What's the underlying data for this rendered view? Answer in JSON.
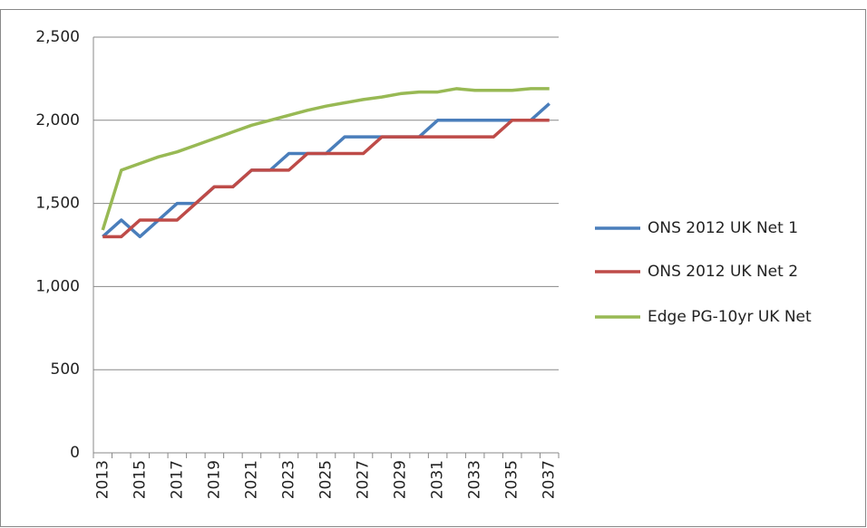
{
  "chart_data": {
    "type": "line",
    "categories": [
      "2013",
      null,
      "2015",
      null,
      "2017",
      null,
      "2019",
      null,
      "2021",
      null,
      "2023",
      null,
      "2025",
      null,
      "2027",
      null,
      "2029",
      null,
      "2031",
      null,
      "2033",
      null,
      "2035",
      null,
      "2037"
    ],
    "series": [
      {
        "name": "ONS 2012 UK Net 1",
        "color": "#4a7ebb",
        "values": [
          1300,
          1400,
          1300,
          1400,
          1500,
          1500,
          1600,
          1600,
          1700,
          1700,
          1800,
          1800,
          1800,
          1900,
          1900,
          1900,
          1900,
          1900,
          2000,
          2000,
          2000,
          2000,
          2000,
          2000,
          2100
        ]
      },
      {
        "name": "ONS 2012 UK Net 2",
        "color": "#be4b48",
        "values": [
          1300,
          1300,
          1400,
          1400,
          1400,
          1500,
          1600,
          1600,
          1700,
          1700,
          1700,
          1800,
          1800,
          1800,
          1800,
          1900,
          1900,
          1900,
          1900,
          1900,
          1900,
          1900,
          2000,
          2000,
          2000
        ]
      },
      {
        "name": "Edge PG-10yr UK Net",
        "color": "#98b954",
        "values": [
          1340,
          1700,
          1740,
          1780,
          1810,
          1850,
          1890,
          1930,
          1970,
          2000,
          2030,
          2060,
          2085,
          2105,
          2125,
          2140,
          2160,
          2170,
          2170,
          2190,
          2180,
          2180,
          2180,
          2190,
          2190
        ]
      }
    ],
    "ylim": [
      0,
      2500
    ],
    "yticks": [
      0,
      500,
      {
        "value": 1000,
        "label": "1,000"
      },
      {
        "value": 1500,
        "label": "1,500"
      },
      {
        "value": 2000,
        "label": "2,000"
      },
      {
        "value": 2500,
        "label": "2,500"
      }
    ],
    "grid": true,
    "legend": "right"
  }
}
